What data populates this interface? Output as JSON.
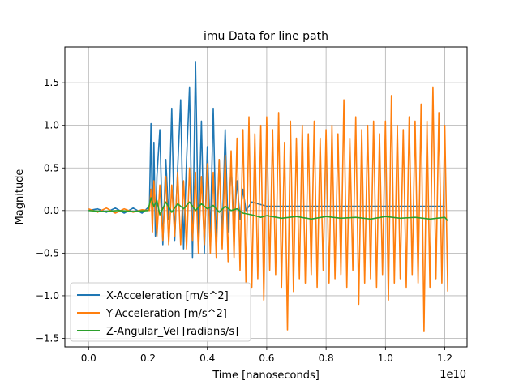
{
  "chart_data": {
    "type": "line",
    "title": "imu Data for line path",
    "xlabel": "Time [nanoseconds]",
    "ylabel": "Magnitude",
    "x_offset_label": "1e10",
    "xlim": [
      -0.08,
      1.275
    ],
    "ylim": [
      -1.6,
      1.92
    ],
    "x_ticks": [
      0.0,
      0.2,
      0.4,
      0.6,
      0.8,
      1.0,
      1.2
    ],
    "x_tick_labels": [
      "0.0",
      "0.2",
      "0.4",
      "0.6",
      "0.8",
      "1.0",
      "1.2"
    ],
    "y_ticks": [
      -1.5,
      -1.0,
      -0.5,
      0.0,
      0.5,
      1.0,
      1.5
    ],
    "y_tick_labels": [
      "−1.5",
      "−1.0",
      "−0.5",
      "0.0",
      "0.5",
      "1.0",
      "1.5"
    ],
    "grid": true,
    "legend_position": "lower-left",
    "series": [
      {
        "name": "X-Acceleration [m/s^2]",
        "color": "#1f77b4",
        "x": [
          0.0,
          0.03,
          0.06,
          0.09,
          0.12,
          0.15,
          0.18,
          0.205,
          0.21,
          0.215,
          0.22,
          0.225,
          0.23,
          0.24,
          0.25,
          0.26,
          0.27,
          0.28,
          0.29,
          0.3,
          0.31,
          0.32,
          0.33,
          0.34,
          0.35,
          0.36,
          0.37,
          0.38,
          0.39,
          0.4,
          0.41,
          0.42,
          0.43,
          0.44,
          0.45,
          0.46,
          0.47,
          0.48,
          0.49,
          0.5,
          0.51,
          0.52,
          0.53,
          0.55,
          0.6,
          0.7,
          0.8,
          0.9,
          1.0,
          1.1,
          1.2
        ],
        "y": [
          0.0,
          0.02,
          -0.02,
          0.03,
          -0.03,
          0.03,
          -0.03,
          0.05,
          1.02,
          -0.2,
          0.8,
          -0.3,
          0.4,
          0.95,
          -0.4,
          0.6,
          -0.1,
          1.2,
          -0.35,
          0.5,
          1.3,
          -0.45,
          0.6,
          1.45,
          -0.55,
          1.75,
          -0.3,
          1.05,
          -0.5,
          0.75,
          -0.3,
          1.2,
          -0.4,
          0.6,
          -0.3,
          0.95,
          -0.25,
          0.55,
          -0.2,
          0.35,
          -0.1,
          0.25,
          0.0,
          0.1,
          0.05,
          0.05,
          0.05,
          0.05,
          0.05,
          0.05,
          0.05
        ]
      },
      {
        "name": "Y-Acceleration [m/s^2]",
        "color": "#ff7f0e",
        "x": [
          0.0,
          0.03,
          0.06,
          0.09,
          0.12,
          0.15,
          0.18,
          0.205,
          0.21,
          0.215,
          0.22,
          0.23,
          0.24,
          0.25,
          0.26,
          0.27,
          0.28,
          0.29,
          0.3,
          0.31,
          0.32,
          0.33,
          0.34,
          0.35,
          0.36,
          0.37,
          0.38,
          0.39,
          0.4,
          0.41,
          0.42,
          0.43,
          0.44,
          0.45,
          0.46,
          0.47,
          0.48,
          0.49,
          0.5,
          0.51,
          0.52,
          0.53,
          0.54,
          0.55,
          0.56,
          0.57,
          0.58,
          0.59,
          0.6,
          0.61,
          0.62,
          0.63,
          0.64,
          0.65,
          0.66,
          0.67,
          0.68,
          0.69,
          0.7,
          0.71,
          0.72,
          0.73,
          0.74,
          0.75,
          0.76,
          0.77,
          0.78,
          0.79,
          0.8,
          0.81,
          0.82,
          0.83,
          0.84,
          0.85,
          0.86,
          0.87,
          0.88,
          0.89,
          0.9,
          0.91,
          0.92,
          0.93,
          0.94,
          0.95,
          0.96,
          0.97,
          0.98,
          0.99,
          1.0,
          1.01,
          1.02,
          1.03,
          1.04,
          1.05,
          1.06,
          1.07,
          1.08,
          1.09,
          1.1,
          1.11,
          1.12,
          1.13,
          1.14,
          1.15,
          1.16,
          1.17,
          1.18,
          1.19,
          1.2,
          1.21
        ],
        "y": [
          0.02,
          -0.02,
          0.03,
          -0.03,
          0.02,
          -0.02,
          0.01,
          0.0,
          0.25,
          -0.25,
          0.35,
          -0.3,
          0.3,
          -0.35,
          0.4,
          -0.4,
          0.3,
          -0.3,
          0.45,
          -0.4,
          0.35,
          -0.45,
          0.5,
          -0.35,
          0.45,
          -0.5,
          0.4,
          -0.4,
          0.55,
          -0.5,
          0.45,
          -0.55,
          0.6,
          -0.45,
          0.65,
          -0.6,
          0.7,
          -0.55,
          0.85,
          -0.7,
          0.95,
          -0.85,
          1.1,
          -0.9,
          0.9,
          -0.8,
          1.0,
          -1.05,
          1.1,
          -0.7,
          0.95,
          -0.75,
          1.15,
          -0.9,
          0.8,
          -1.4,
          1.05,
          -0.95,
          0.85,
          -0.8,
          1.0,
          -0.85,
          0.9,
          -0.75,
          1.05,
          -0.9,
          0.85,
          -0.7,
          0.95,
          -0.85,
          1.0,
          -0.8,
          0.9,
          -0.75,
          1.3,
          -0.9,
          0.85,
          -0.7,
          1.1,
          -1.1,
          0.95,
          -0.85,
          1.0,
          -0.8,
          1.05,
          -0.9,
          0.9,
          -0.75,
          1.05,
          -1.05,
          1.35,
          -0.85,
          1.0,
          -0.8,
          0.95,
          -0.9,
          1.1,
          -0.75,
          1.05,
          -0.85,
          1.25,
          -1.42,
          1.05,
          -0.9,
          1.45,
          -0.8,
          1.15,
          -0.85,
          1.0,
          -0.95
        ]
      },
      {
        "name": "Z-Angular_Vel [radians/s]",
        "color": "#2ca02c",
        "x": [
          0.0,
          0.05,
          0.1,
          0.15,
          0.2,
          0.21,
          0.22,
          0.23,
          0.24,
          0.26,
          0.28,
          0.3,
          0.32,
          0.34,
          0.36,
          0.38,
          0.4,
          0.42,
          0.44,
          0.46,
          0.48,
          0.5,
          0.52,
          0.55,
          0.58,
          0.6,
          0.65,
          0.7,
          0.75,
          0.8,
          0.85,
          0.9,
          0.95,
          1.0,
          1.05,
          1.1,
          1.15,
          1.2,
          1.21
        ],
        "y": [
          0.0,
          -0.01,
          0.0,
          -0.01,
          0.0,
          0.15,
          0.05,
          0.12,
          -0.05,
          0.1,
          -0.02,
          0.08,
          0.02,
          0.1,
          0.0,
          0.08,
          0.02,
          0.06,
          -0.02,
          0.05,
          0.0,
          0.02,
          -0.03,
          -0.05,
          -0.08,
          -0.06,
          -0.09,
          -0.07,
          -0.1,
          -0.07,
          -0.09,
          -0.08,
          -0.1,
          -0.07,
          -0.09,
          -0.08,
          -0.1,
          -0.08,
          -0.12
        ]
      }
    ]
  }
}
